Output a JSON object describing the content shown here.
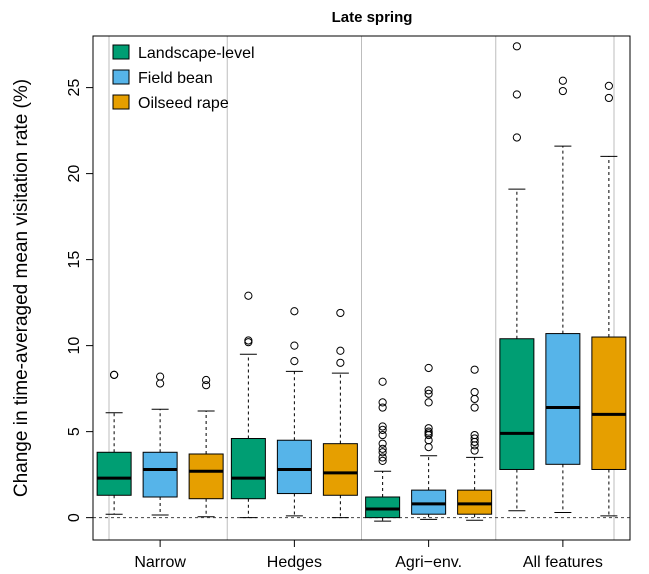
{
  "chart_data": {
    "type": "boxplot",
    "title": "Late spring",
    "xlabel": "",
    "ylabel": "Change in time-averaged mean visitation rate (%)",
    "ylim": [
      -1.3,
      28
    ],
    "yticks": [
      0,
      5,
      10,
      15,
      20,
      25
    ],
    "categories": [
      "Narrow",
      "Hedges",
      "Agri−env.",
      "All features"
    ],
    "reference_line": 0,
    "legend_position": "top-left",
    "series": [
      {
        "name": "Landscape-level",
        "color": "#009E73",
        "boxes": [
          {
            "whisker_low": 0.2,
            "q1": 1.3,
            "median": 2.3,
            "q3": 3.8,
            "whisker_high": 6.1,
            "outliers": [
              8.3,
              8.3
            ]
          },
          {
            "whisker_low": 0.0,
            "q1": 1.1,
            "median": 2.3,
            "q3": 4.6,
            "whisker_high": 9.5,
            "outliers": [
              10.2,
              10.3,
              12.9
            ]
          },
          {
            "whisker_low": -0.2,
            "q1": 0.0,
            "median": 0.5,
            "q3": 1.2,
            "whisker_high": 2.7,
            "outliers": [
              3.3,
              3.5,
              3.8,
              4.0,
              4.3,
              4.8,
              5.1,
              5.3,
              6.4,
              6.7,
              7.9
            ]
          },
          {
            "whisker_low": 0.4,
            "q1": 2.8,
            "median": 4.9,
            "q3": 10.4,
            "whisker_high": 19.1,
            "outliers": [
              22.1,
              24.6,
              27.4
            ]
          }
        ]
      },
      {
        "name": "Field bean",
        "color": "#56B4E9",
        "boxes": [
          {
            "whisker_low": 0.15,
            "q1": 1.2,
            "median": 2.8,
            "q3": 3.8,
            "whisker_high": 6.3,
            "outliers": [
              7.8,
              8.2
            ]
          },
          {
            "whisker_low": 0.1,
            "q1": 1.4,
            "median": 2.8,
            "q3": 4.5,
            "whisker_high": 8.5,
            "outliers": [
              9.1,
              10.0,
              12.0
            ]
          },
          {
            "whisker_low": -0.1,
            "q1": 0.2,
            "median": 0.8,
            "q3": 1.6,
            "whisker_high": 3.6,
            "outliers": [
              4.1,
              4.5,
              4.8,
              4.9,
              5.0,
              5.2,
              6.7,
              7.2,
              7.4,
              8.7
            ]
          },
          {
            "whisker_low": 0.3,
            "q1": 3.1,
            "median": 6.4,
            "q3": 10.7,
            "whisker_high": 21.6,
            "outliers": [
              24.8,
              25.4
            ]
          }
        ]
      },
      {
        "name": "Oilseed rape",
        "color": "#E69F00",
        "boxes": [
          {
            "whisker_low": 0.05,
            "q1": 1.1,
            "median": 2.7,
            "q3": 3.7,
            "whisker_high": 6.2,
            "outliers": [
              7.7,
              8.0
            ]
          },
          {
            "whisker_low": 0.0,
            "q1": 1.3,
            "median": 2.6,
            "q3": 4.3,
            "whisker_high": 8.4,
            "outliers": [
              9.0,
              9.7,
              11.9
            ]
          },
          {
            "whisker_low": -0.15,
            "q1": 0.2,
            "median": 0.8,
            "q3": 1.6,
            "whisker_high": 3.5,
            "outliers": [
              3.9,
              4.2,
              4.4,
              4.6,
              4.8,
              6.4,
              6.9,
              7.3,
              8.6
            ]
          },
          {
            "whisker_low": 0.1,
            "q1": 2.8,
            "median": 6.0,
            "q3": 10.5,
            "whisker_high": 21.0,
            "outliers": [
              24.4,
              25.1
            ]
          }
        ]
      }
    ]
  }
}
